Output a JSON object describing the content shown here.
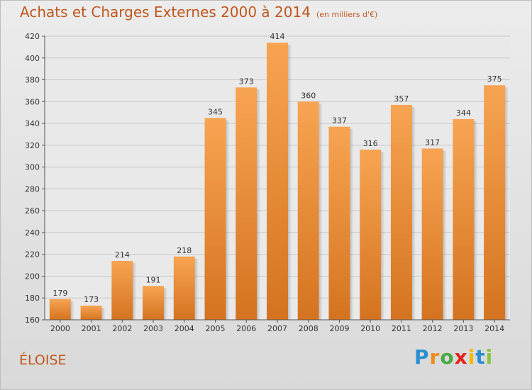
{
  "chart_data": {
    "type": "bar",
    "title": "Achats et Charges Externes 2000 à 2014",
    "unit_note": "(en milliers d'€)",
    "categories": [
      "2000",
      "2001",
      "2002",
      "2003",
      "2004",
      "2005",
      "2006",
      "2007",
      "2008",
      "2009",
      "2010",
      "2011",
      "2012",
      "2013",
      "2014"
    ],
    "values": [
      179,
      173,
      214,
      191,
      218,
      345,
      373,
      414,
      360,
      337,
      316,
      357,
      317,
      344,
      375
    ],
    "ylim": [
      160,
      420
    ],
    "yticks": [
      160,
      180,
      200,
      220,
      240,
      260,
      280,
      300,
      320,
      340,
      360,
      380,
      400,
      420
    ],
    "grid": true,
    "bar_color_top": "#f7a452",
    "bar_color_bottom": "#d4731f"
  },
  "commune": "ÉLOISE",
  "logo": {
    "letters": [
      "P",
      "r",
      "o",
      "x",
      "i",
      "t",
      "i"
    ],
    "colors": [
      "#2a8fd1",
      "#f08a1c",
      "#49a942",
      "#e2231a",
      "#f3b800",
      "#2a8fd1",
      "#8bc53f"
    ]
  }
}
